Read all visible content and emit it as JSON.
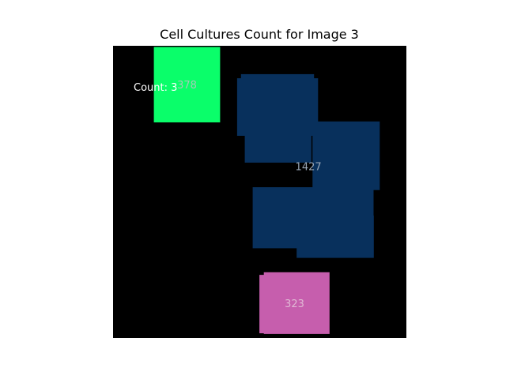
{
  "chart_data": {
    "type": "heatmap",
    "title": "Cell Cultures Count for Image 3",
    "count_text": "Count: 3",
    "background_color": "#000000",
    "axes": "off",
    "grid": false,
    "regions": [
      {
        "label": "378",
        "color": "#0afe6a",
        "label_color": "#a8c8b8",
        "rects": [
          [
            0.139,
            0.004,
            0.226,
            0.258
          ]
        ]
      },
      {
        "label": "1427",
        "color": "#08305c",
        "label_color": "#9aa8b8",
        "rects": [
          [
            0.436,
            0.097,
            0.249,
            0.116
          ],
          [
            0.423,
            0.111,
            0.276,
            0.197
          ],
          [
            0.449,
            0.238,
            0.227,
            0.162
          ],
          [
            0.68,
            0.259,
            0.229,
            0.235
          ],
          [
            0.476,
            0.484,
            0.412,
            0.209
          ],
          [
            0.626,
            0.581,
            0.263,
            0.145
          ]
        ]
      },
      {
        "label": "323",
        "color": "#c65ead",
        "label_color": "#e0b8d4",
        "rects": [
          [
            0.514,
            0.775,
            0.224,
            0.211
          ],
          [
            0.499,
            0.784,
            0.04,
            0.2
          ]
        ]
      }
    ]
  }
}
